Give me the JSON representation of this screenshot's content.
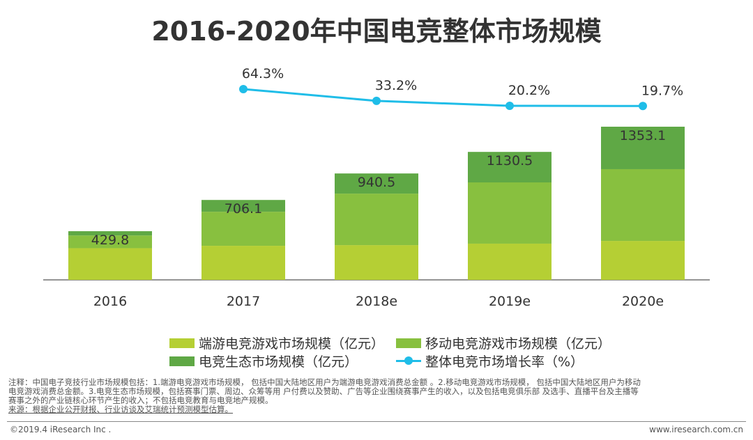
{
  "chart_data": {
    "type": "bar",
    "stacked": true,
    "title": "2016-2020年中国电竞整体市场规模",
    "categories": [
      "2016",
      "2017",
      "2018e",
      "2019e",
      "2020e"
    ],
    "series": [
      {
        "name": "端游电竞游戏市场规模（亿元）",
        "values": [
          280,
          301,
          307,
          320,
          344
        ],
        "color": "#b5cf34"
      },
      {
        "name": "移动电竞游戏市场规模（亿元）",
        "values": [
          112,
          301,
          455,
          541,
          634
        ],
        "color": "#88c03f"
      },
      {
        "name": "电竞生态市场规模（亿元）",
        "values": [
          38,
          104,
          178,
          269.5,
          375.1
        ],
        "color": "#5fa845"
      }
    ],
    "totals": [
      "429.8",
      "706.1",
      "940.5",
      "1130.5",
      "1353.1"
    ],
    "line_series": {
      "name": "整体电竞市场增长率（%）",
      "values": [
        null,
        64.3,
        33.2,
        20.2,
        19.7
      ],
      "labels": [
        "",
        "64.3%",
        "33.2%",
        "20.2%",
        "19.7%"
      ],
      "color": "#1fbde8"
    },
    "legend_position": "bottom",
    "grid": false
  },
  "notes": {
    "line1": "注释：中国电子竞技行业市场规模包括：1.端游电竞游戏市场规模， 包括中国大陆地区用户为端游电竞游戏消费总金额 。2.移动电竞游戏市场规模， 包括中国大陆地区用户为移动",
    "line2": "电竞游戏消费总金额。3.电竞生态市场规模，包括赛事门票、周边、众筹等用 户付费以及赞助、广告等企业围绕赛事产生的收入，以及包括电竞俱乐部 及选手、直播平台及主播等",
    "line3": "赛事之外的产业链核心环节产生的收入；不包括电竞教育与电竞地产规模。",
    "source": "来源：根据企业公开财报、行业访谈及艾瑞统计预测模型估算。"
  },
  "footer": {
    "copyright": "©2019.4 iResearch Inc .",
    "website": "www.iresearch.com.cn"
  }
}
